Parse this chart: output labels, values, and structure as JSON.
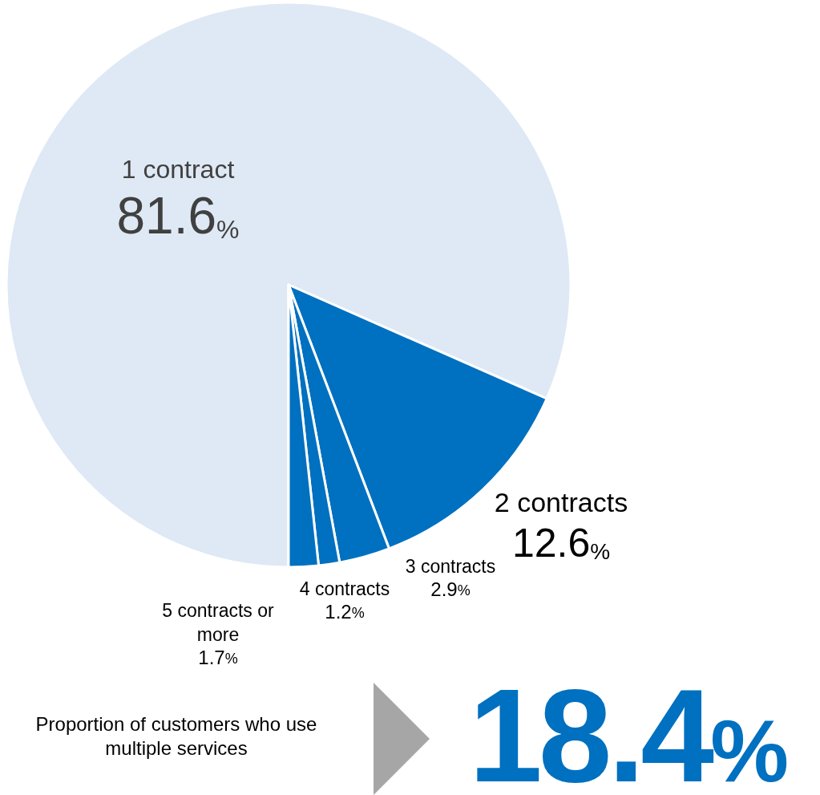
{
  "chart_data": {
    "type": "pie",
    "categories": [
      "1 contract",
      "2 contracts",
      "3 contracts",
      "4 contracts",
      "5 contracts or more"
    ],
    "values": [
      81.6,
      12.6,
      2.9,
      1.2,
      1.7
    ],
    "value_labels": [
      "81.6%",
      "12.6%",
      "2.9%",
      "1.2%",
      "1.7%"
    ],
    "colors": [
      "#dee9f5",
      "#0070c0",
      "#0070c0",
      "#0070c0",
      "#0070c0"
    ],
    "legend": false,
    "annotations": [
      "Proportion of customers who use multiple services",
      "18.4%"
    ]
  }
}
